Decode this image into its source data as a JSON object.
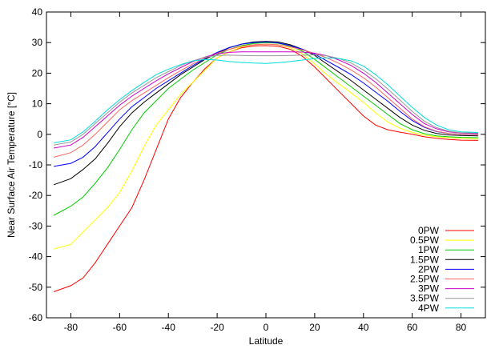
{
  "chart_data": {
    "type": "line",
    "title": "",
    "xlabel": "Latitude",
    "ylabel": "Near Surface Air Temperature [°C]",
    "xlim": [
      -90,
      90
    ],
    "ylim": [
      -60,
      40
    ],
    "xticks": [
      -80,
      -60,
      -40,
      -20,
      0,
      20,
      40,
      60,
      80
    ],
    "yticks": [
      -60,
      -50,
      -40,
      -30,
      -20,
      -10,
      0,
      10,
      20,
      30,
      40
    ],
    "grid": false,
    "legend_position": "bottom-right",
    "x": [
      -87,
      -80,
      -75,
      -70,
      -65,
      -60,
      -55,
      -50,
      -45,
      -40,
      -35,
      -30,
      -25,
      -20,
      -15,
      -10,
      -5,
      0,
      5,
      10,
      15,
      20,
      25,
      30,
      35,
      40,
      45,
      50,
      55,
      60,
      65,
      70,
      75,
      80,
      87
    ],
    "series": [
      {
        "name": "0PW",
        "color": "#ff0000",
        "values": [
          -51.5,
          -49.5,
          -47,
          -42,
          -36,
          -30,
          -24,
          -15,
          -5,
          5,
          12,
          17,
          21.5,
          25,
          27,
          28.3,
          28.9,
          29,
          28.8,
          27.8,
          25.5,
          22,
          18,
          14,
          10,
          6,
          3,
          1.5,
          0.7,
          0,
          -0.8,
          -1.3,
          -1.7,
          -1.9,
          -2
        ]
      },
      {
        "name": "0.5PW",
        "color": "#ffff00",
        "values": [
          -37.5,
          -36,
          -32,
          -28,
          -24,
          -19,
          -12,
          -4,
          3,
          8,
          13,
          17,
          21,
          25,
          27,
          28.6,
          29.3,
          29.5,
          29.3,
          28.3,
          26.3,
          23,
          19.5,
          16.5,
          13.5,
          10.5,
          7,
          4,
          2,
          0.6,
          -0.3,
          -0.8,
          -1.1,
          -1.3,
          -1.5
        ]
      },
      {
        "name": "1PW",
        "color": "#00cc00",
        "values": [
          -26.5,
          -23.5,
          -20.5,
          -16,
          -11,
          -5,
          1.5,
          7,
          11,
          15,
          18,
          21,
          23.5,
          26,
          27.8,
          29,
          29.7,
          30,
          29.8,
          28.9,
          27.2,
          24.5,
          21.5,
          18.5,
          15.5,
          12.5,
          9.5,
          6.5,
          3.5,
          1.5,
          0.2,
          -0.5,
          -0.8,
          -1,
          -1.1
        ]
      },
      {
        "name": "1.5PW",
        "color": "#000000",
        "values": [
          -16.5,
          -14.5,
          -11.5,
          -8,
          -3,
          2.5,
          7,
          10.5,
          13.5,
          16.5,
          19.5,
          22,
          24.5,
          26.5,
          28.3,
          29.5,
          30.2,
          30.4,
          30.2,
          29.3,
          27.8,
          25.8,
          23,
          20.3,
          17.5,
          14.5,
          11.5,
          8.5,
          5.5,
          3,
          1.3,
          0.3,
          -0.2,
          -0.4,
          -0.5
        ]
      },
      {
        "name": "2PW",
        "color": "#0000ff",
        "values": [
          -10.5,
          -9.5,
          -7.5,
          -4,
          0.5,
          5,
          9,
          12,
          15,
          17.5,
          20,
          22.5,
          24.8,
          26.8,
          28.4,
          29.5,
          30,
          30.2,
          29.9,
          29,
          27.8,
          26.2,
          24,
          21.8,
          19.5,
          16.8,
          13.8,
          10.8,
          7.5,
          4.5,
          2.3,
          0.9,
          0.3,
          0,
          0
        ]
      },
      {
        "name": "2.5PW",
        "color": "#ff6666",
        "values": [
          -7.5,
          -6,
          -3.5,
          0,
          4,
          8,
          11,
          13.5,
          16,
          18.5,
          20.8,
          23,
          25,
          26.5,
          27.8,
          28.8,
          29.3,
          29.5,
          29.3,
          28.6,
          27.6,
          26.5,
          25,
          23.2,
          21,
          18.5,
          15.5,
          12,
          8.5,
          5,
          2.5,
          1,
          0.3,
          0,
          -0.1
        ]
      },
      {
        "name": "3PW",
        "color": "#cc00cc",
        "values": [
          -4.5,
          -3.5,
          -1,
          2.5,
          6,
          9.5,
          12.5,
          15,
          17.5,
          19.8,
          21.8,
          23.8,
          25.3,
          26.3,
          26.8,
          27,
          27,
          27,
          27,
          27,
          26.9,
          26.5,
          25.7,
          24.3,
          22.5,
          20,
          17,
          13.5,
          10,
          6.5,
          3.5,
          1.8,
          0.8,
          0.4,
          0.3
        ]
      },
      {
        "name": "3.5PW",
        "color": "#999999",
        "values": [
          -3.5,
          -2.5,
          0,
          3.5,
          7,
          10.5,
          13.5,
          16,
          18.5,
          20.5,
          22.5,
          24,
          25.2,
          25.8,
          25.9,
          25.8,
          25.7,
          25.7,
          25.7,
          25.8,
          25.9,
          26,
          25.7,
          24.8,
          23.3,
          21,
          18.2,
          14.8,
          11.2,
          7.5,
          4.3,
          2.2,
          1,
          0.5,
          0.4
        ]
      },
      {
        "name": "4PW",
        "color": "#00dddd",
        "values": [
          -2.8,
          -1.8,
          0.8,
          4.3,
          8,
          11.3,
          14.3,
          17,
          19.5,
          21.3,
          22.8,
          24,
          24.5,
          24.3,
          23.8,
          23.5,
          23.3,
          23.2,
          23.4,
          23.8,
          24.3,
          24.8,
          25,
          24.8,
          24,
          22.3,
          19.5,
          16.2,
          12.5,
          8.8,
          5.5,
          3,
          1.5,
          0.8,
          0.6
        ]
      }
    ]
  }
}
